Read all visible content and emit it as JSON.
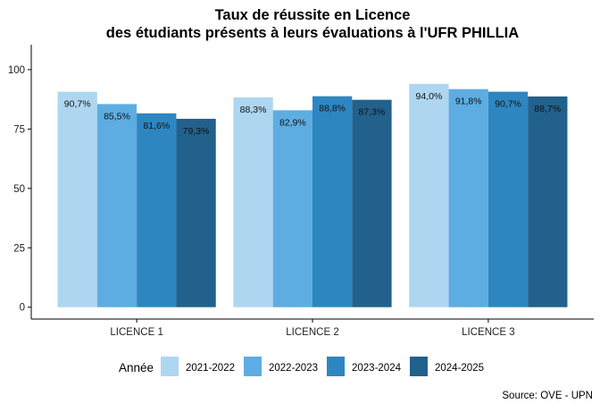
{
  "chart_data": {
    "type": "bar",
    "title": "Taux de réussite en Licence",
    "subtitle": "des étudiants présents à leurs évaluations à l'UFR PHILLIA",
    "xlabel": "",
    "ylabel": "",
    "categories": [
      "LICENCE 1",
      "LICENCE 2",
      "LICENCE 3"
    ],
    "series": [
      {
        "name": "2021-2022",
        "color": "#AED6F1",
        "values": [
          90.7,
          88.3,
          94.0
        ],
        "labels": [
          "90,7%",
          "88,3%",
          "94,0%"
        ]
      },
      {
        "name": "2022-2023",
        "color": "#5DADE2",
        "values": [
          85.5,
          82.9,
          91.8
        ],
        "labels": [
          "85,5%",
          "82,9%",
          "91,8%"
        ]
      },
      {
        "name": "2023-2024",
        "color": "#2E86C1",
        "values": [
          81.6,
          88.8,
          90.7
        ],
        "labels": [
          "81,6%",
          "88,8%",
          "90,7%"
        ]
      },
      {
        "name": "2024-2025",
        "color": "#21618C",
        "values": [
          79.3,
          87.3,
          88.7
        ],
        "labels": [
          "79,3%",
          "87,3%",
          "88,7%"
        ]
      }
    ],
    "yticks": [
      "0",
      "25",
      "50",
      "75",
      "100"
    ],
    "ylim": [
      -5,
      110.5
    ],
    "grid": false,
    "legend_title": "Année",
    "legend_position": "bottom",
    "caption": "Source: OVE - UPN"
  }
}
